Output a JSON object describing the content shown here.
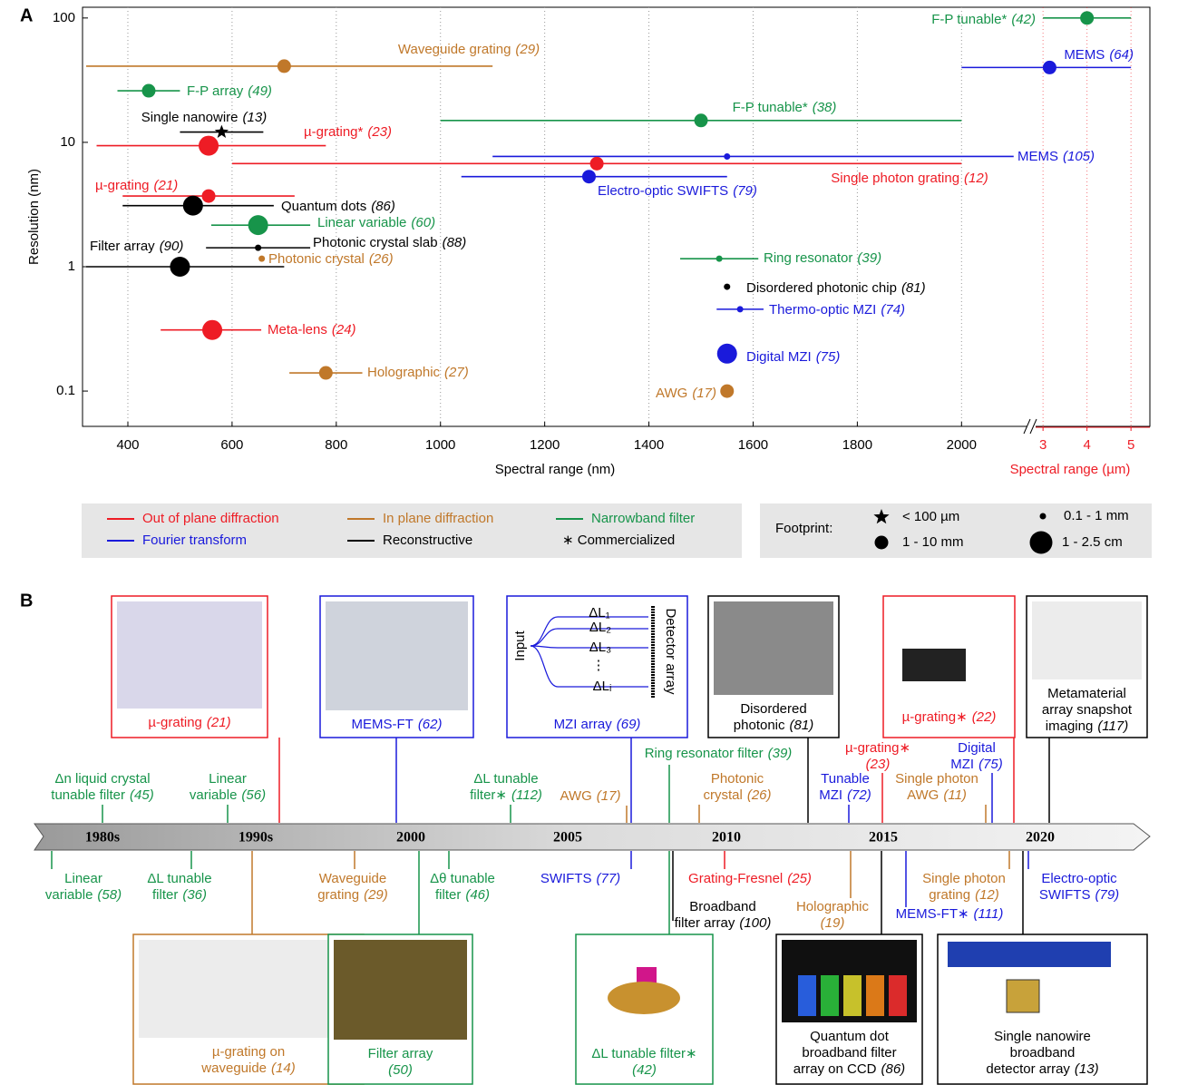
{
  "chart_data": {
    "type": "scatter",
    "panel": "A",
    "x_label": "Spectral range (nm)",
    "x2_label": "Spectral range (µm)",
    "y_label": "Resolution (nm)",
    "xlim": [
      313,
      2130
    ],
    "x2lim": [
      2770,
      5430
    ],
    "xticks": [
      400,
      600,
      800,
      1000,
      1200,
      1400,
      1600,
      1800,
      2000
    ],
    "x2ticks": [
      {
        "value": 3000,
        "label": "3"
      },
      {
        "value": 4000,
        "label": "4"
      },
      {
        "value": 5000,
        "label": "5"
      }
    ],
    "x2_color": "#ee1c25",
    "ylim": [
      0.052,
      122
    ],
    "yticks": [
      0.1,
      1,
      10,
      100
    ],
    "log_y": true,
    "grid": true,
    "groups": [
      {
        "name": "Out of plane diffraction",
        "color": "#ee1c25"
      },
      {
        "name": "In plane diffraction",
        "color": "#c0782a"
      },
      {
        "name": "Narrowband filter",
        "color": "#17944a"
      },
      {
        "name": "Fourier transform",
        "color": "#1a1adb"
      },
      {
        "name": "Reconstructive",
        "color": "#000000"
      }
    ],
    "commercialized": "∗ Commercialized",
    "footprint_title": "Footprint:",
    "footprints": [
      "< 100 µm",
      "0.1 - 1 mm",
      "1 - 10 mm",
      "1 - 2.5 cm"
    ],
    "points": [
      {
        "name": "Waveguide grating",
        "ref": "(29)",
        "group": 1,
        "footprint": 2,
        "x": 700,
        "xmin": 320,
        "xmax": 1100,
        "y": 41
      },
      {
        "name": "F-P array",
        "ref": "(49)",
        "group": 2,
        "footprint": 2,
        "x": 440,
        "xmin": 380,
        "xmax": 500,
        "y": 26
      },
      {
        "name": "F-P tunable*",
        "ref": "(38)",
        "group": 2,
        "footprint": 2,
        "x": 1500,
        "xmin": 1000,
        "xmax": 2000,
        "y": 15
      },
      {
        "name": "MEMS",
        "ref": "(105)",
        "group": 3,
        "footprint": 1,
        "x": 1550,
        "xmin": 1100,
        "xmax": 2100,
        "y": 7.7
      },
      {
        "name": "Single photon grating",
        "ref": "(12)",
        "group": 0,
        "footprint": 2,
        "x": 1300,
        "xmin": 600,
        "xmax": 2000,
        "y": 6.75
      },
      {
        "name": "Electro-optic SWIFTS",
        "ref": "(79)",
        "group": 3,
        "footprint": 2,
        "x": 1285,
        "xmin": 1040,
        "xmax": 1550,
        "y": 5.3
      },
      {
        "name": "Single nanowire",
        "ref": "(13)",
        "group": 4,
        "footprint": 0,
        "x": 580,
        "xmin": 500,
        "xmax": 660,
        "y": 12.1
      },
      {
        "name": "µ-grating*",
        "ref": "(23)",
        "group": 0,
        "footprint": 3,
        "x": 555,
        "xmin": 340,
        "xmax": 780,
        "y": 9.4
      },
      {
        "name": "µ-grating",
        "ref": "(21)",
        "group": 0,
        "footprint": 2,
        "x": 555,
        "xmin": 390,
        "xmax": 720,
        "y": 3.7
      },
      {
        "name": "Quantum dots",
        "ref": "(86)",
        "group": 4,
        "footprint": 3,
        "x": 525,
        "xmin": 390,
        "xmax": 680,
        "y": 3.1
      },
      {
        "name": "Linear variable",
        "ref": "(60)",
        "group": 2,
        "footprint": 3,
        "x": 650,
        "xmin": 560,
        "xmax": 750,
        "y": 2.16
      },
      {
        "name": "Photonic crystal slab",
        "ref": "(88)",
        "group": 4,
        "footprint": 1,
        "x": 650,
        "xmin": 550,
        "xmax": 750,
        "y": 1.42
      },
      {
        "name": "Photonic crystal",
        "ref": "(26)",
        "group": 1,
        "footprint": 1,
        "x": 657,
        "y": 1.16
      },
      {
        "name": "Filter array",
        "ref": "(90)",
        "group": 4,
        "footprint": 3,
        "x": 500,
        "xmin": 320,
        "xmax": 700,
        "y": 1.0
      },
      {
        "name": "Ring resonator",
        "ref": "(39)",
        "group": 2,
        "footprint": 1,
        "x": 1535,
        "xmin": 1460,
        "xmax": 1610,
        "y": 1.16
      },
      {
        "name": "Disordered photonic chip",
        "ref": "(81)",
        "group": 4,
        "footprint": 1,
        "x": 1550,
        "y": 0.69
      },
      {
        "name": "Thermo-optic MZI",
        "ref": "(74)",
        "group": 3,
        "footprint": 1,
        "x": 1575,
        "xmin": 1530,
        "xmax": 1620,
        "y": 0.455
      },
      {
        "name": "Meta-lens",
        "ref": "(24)",
        "group": 0,
        "footprint": 3,
        "x": 562,
        "xmin": 463,
        "xmax": 656,
        "y": 0.31
      },
      {
        "name": "Digital MZI",
        "ref": "(75)",
        "group": 3,
        "footprint": 3,
        "x": 1550,
        "y": 0.2
      },
      {
        "name": "Holographic",
        "ref": "(27)",
        "group": 1,
        "footprint": 2,
        "x": 780,
        "xmin": 710,
        "xmax": 850,
        "y": 0.14
      },
      {
        "name": "AWG",
        "ref": "(17)",
        "group": 1,
        "footprint": 2,
        "x": 1550,
        "y": 0.1
      },
      {
        "name": "F-P tunable*",
        "ref": "(42)",
        "group": 2,
        "footprint": 2,
        "x": 4000,
        "xmin": 3000,
        "xmax": 5000,
        "y": 100
      },
      {
        "name": "MEMS",
        "ref": "(64)",
        "group": 3,
        "footprint": 2,
        "x": 3150,
        "xmin": 2000,
        "xmax": 5000,
        "y": 40
      }
    ]
  },
  "timeline": {
    "panel": "B",
    "decades": [
      "1980s",
      "1990s",
      "2000",
      "2005",
      "2010",
      "2015",
      "2020"
    ],
    "events": [
      {
        "lines": [
          "Δn liquid crystal",
          "tunable filter"
        ],
        "ref": "(45)",
        "color": "#17944a"
      },
      {
        "lines": [
          "Linear",
          "variable"
        ],
        "ref": "(56)",
        "color": "#17944a"
      },
      {
        "lines": [
          "ΔL tunable",
          "filter∗"
        ],
        "ref": "(112)",
        "color": "#17944a"
      },
      {
        "lines": [
          "AWG"
        ],
        "ref": "(17)",
        "color": "#c0782a"
      },
      {
        "lines": [
          "Ring resonator filter"
        ],
        "ref": "(39)",
        "color": "#17944a"
      },
      {
        "lines": [
          "Photonic",
          "crystal"
        ],
        "ref": "(26)",
        "color": "#c0782a"
      },
      {
        "lines": [
          "Tunable",
          "MZI"
        ],
        "ref": "(72)",
        "color": "#1a1adb"
      },
      {
        "lines": [
          "µ-grating∗"
        ],
        "ref": "(23)",
        "color": "#ee1c25"
      },
      {
        "lines": [
          "Single photon",
          "AWG"
        ],
        "ref": "(11)",
        "color": "#c0782a"
      },
      {
        "lines": [
          "Digital",
          "MZI"
        ],
        "ref": "(75)",
        "color": "#1a1adb"
      },
      {
        "lines": [
          "Linear",
          "variable"
        ],
        "ref": "(58)",
        "color": "#17944a"
      },
      {
        "lines": [
          "ΔL tunable",
          "filter"
        ],
        "ref": "(36)",
        "color": "#17944a"
      },
      {
        "lines": [
          "Waveguide",
          "grating"
        ],
        "ref": "(29)",
        "color": "#c0782a"
      },
      {
        "lines": [
          "Δθ tunable",
          "filter"
        ],
        "ref": "(46)",
        "color": "#17944a"
      },
      {
        "lines": [
          "SWIFTS"
        ],
        "ref": "(77)",
        "color": "#1a1adb"
      },
      {
        "lines": [
          "Broadband",
          "filter array"
        ],
        "ref": "(100)",
        "color": "#000000"
      },
      {
        "lines": [
          "Grating-Fresnel"
        ],
        "ref": "(25)",
        "color": "#ee1c25"
      },
      {
        "lines": [
          "Holographic"
        ],
        "ref": "(19)",
        "color": "#c0782a"
      },
      {
        "lines": [
          "MEMS-FT∗"
        ],
        "ref": "(111)",
        "color": "#1a1adb"
      },
      {
        "lines": [
          "Single photon",
          "grating"
        ],
        "ref": "(12)",
        "color": "#c0782a"
      },
      {
        "lines": [
          "Electro-optic",
          "SWIFTS"
        ],
        "ref": "(79)",
        "color": "#1a1adb"
      }
    ],
    "boxes": [
      {
        "lines": [
          "µ-grating"
        ],
        "ref": "(21)",
        "color": "#ee1c25"
      },
      {
        "lines": [
          "MEMS-FT"
        ],
        "ref": "(62)",
        "color": "#1a1adb"
      },
      {
        "lines": [
          "MZI array"
        ],
        "ref": "(69)",
        "color": "#1a1adb",
        "inner": [
          "Input",
          "ΔL₁",
          "ΔL₂",
          "ΔL₃",
          "⋮",
          "ΔLᵢ",
          "Detector array"
        ]
      },
      {
        "lines": [
          "Disordered",
          "photonic"
        ],
        "ref": "(81)",
        "color": "#000000"
      },
      {
        "lines": [
          "µ-grating∗"
        ],
        "ref": "(22)",
        "color": "#ee1c25"
      },
      {
        "lines": [
          "Metamaterial",
          "array snapshot",
          "imaging"
        ],
        "ref": "(117)",
        "color": "#000000"
      },
      {
        "lines": [
          "µ-grating on",
          "waveguide"
        ],
        "ref": "(14)",
        "color": "#c0782a"
      },
      {
        "lines": [
          "Filter array"
        ],
        "ref": "(50)",
        "color": "#17944a"
      },
      {
        "lines": [
          "ΔL tunable filter∗"
        ],
        "ref": "(42)",
        "color": "#17944a"
      },
      {
        "lines": [
          "Quantum dot",
          "broadband filter",
          "array on CCD"
        ],
        "ref": "(86)",
        "color": "#000000"
      },
      {
        "lines": [
          "Single nanowire",
          "broadband",
          "detector array"
        ],
        "ref": "(13)",
        "color": "#000000"
      }
    ]
  }
}
